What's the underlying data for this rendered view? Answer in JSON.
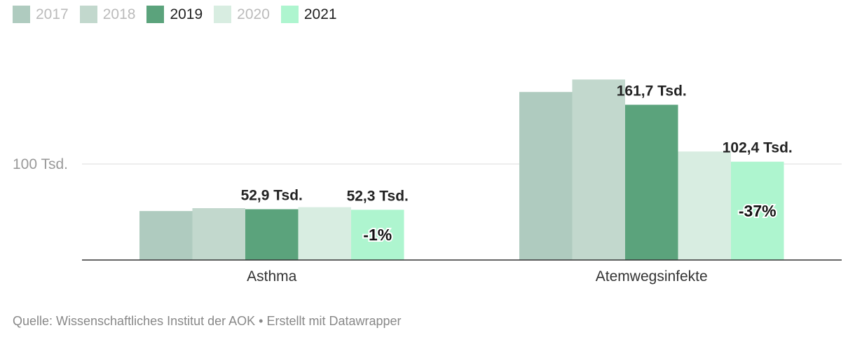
{
  "chart_data": {
    "type": "bar",
    "categories": [
      "Asthma",
      "Atemwegsinfekte"
    ],
    "series": [
      {
        "name": "2017",
        "color": "#afcbbf",
        "values": [
          51.0,
          175.0
        ],
        "active": false
      },
      {
        "name": "2018",
        "color": "#c2d8cd",
        "values": [
          54.0,
          188.0
        ],
        "active": false
      },
      {
        "name": "2019",
        "color": "#5ba37c",
        "values": [
          52.9,
          161.7
        ],
        "active": true
      },
      {
        "name": "2020",
        "color": "#d8ede1",
        "values": [
          55.0,
          113.0
        ],
        "active": false
      },
      {
        "name": "2021",
        "color": "#aef5cf",
        "values": [
          52.3,
          102.4
        ],
        "active": true
      }
    ],
    "value_labels": [
      {
        "category": 0,
        "series": 2,
        "text": "52,9 Tsd."
      },
      {
        "category": 0,
        "series": 4,
        "text": "52,3 Tsd."
      },
      {
        "category": 1,
        "series": 2,
        "text": "161,7 Tsd."
      },
      {
        "category": 1,
        "series": 4,
        "text": "102,4 Tsd."
      }
    ],
    "change_labels": [
      {
        "category": 0,
        "series": 4,
        "text": "-1%"
      },
      {
        "category": 1,
        "series": 4,
        "text": "-37%"
      }
    ],
    "yticks": [
      {
        "value": 100,
        "label": "100 Tsd."
      }
    ],
    "ylim": [
      0,
      200
    ],
    "grid": true,
    "legend": "top-left",
    "xlabel": "",
    "ylabel": ""
  },
  "legend_colors": {
    "active_text": "#222222",
    "inactive_text": "#bbbbbb"
  },
  "footer": {
    "source": "Quelle: Wissenschaftliches Institut der AOK • Erstellt mit Datawrapper"
  }
}
